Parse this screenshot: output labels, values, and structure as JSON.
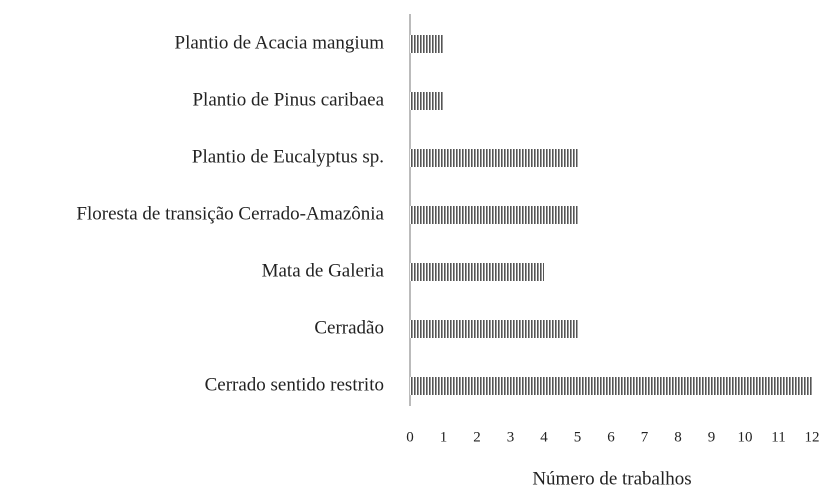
{
  "chart_data": {
    "type": "bar",
    "orientation": "horizontal",
    "categories": [
      "Plantio de Acacia mangium",
      "Plantio de Pinus caribaea",
      "Plantio de Eucalyptus sp.",
      "Floresta de transição Cerrado-Amazônia",
      "Mata de Galeria",
      "Cerradão",
      "Cerrado sentido restrito"
    ],
    "values": [
      1,
      1,
      5,
      5,
      4,
      5,
      12
    ],
    "color": "#555555",
    "xlabel": "Número de trabalhos",
    "xlim": [
      0,
      12
    ],
    "xticks": [
      0,
      1,
      2,
      3,
      4,
      5,
      6,
      7,
      8,
      9,
      10,
      11,
      12
    ],
    "grid": false
  }
}
